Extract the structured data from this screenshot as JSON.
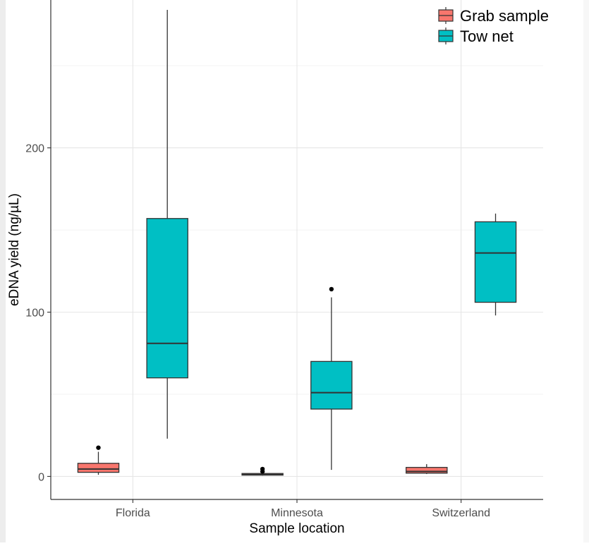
{
  "chart_data": {
    "type": "boxplot",
    "xlabel": "Sample location",
    "ylabel": "eDNA yield (ng/µL)",
    "ylim": [
      -14,
      290
    ],
    "yticks": [
      0,
      100,
      200
    ],
    "categories": [
      "Florida",
      "Minnesota",
      "Switzerland"
    ],
    "legend_position": "top-right",
    "grid": true,
    "series": [
      {
        "name": "Grab sample",
        "color": "#f8766d",
        "boxes": [
          {
            "category": "Florida",
            "whisker_low": 1,
            "q1": 2.5,
            "median": 4.5,
            "q3": 8,
            "whisker_high": 15,
            "outliers": [
              17.5
            ]
          },
          {
            "category": "Minnesota",
            "whisker_low": 0.5,
            "q1": 0.8,
            "median": 1.2,
            "q3": 1.8,
            "whisker_high": 2.5,
            "outliers": [
              3,
              4.5
            ]
          },
          {
            "category": "Switzerland",
            "whisker_low": 1.5,
            "q1": 2,
            "median": 3,
            "q3": 5.5,
            "whisker_high": 7.5,
            "outliers": []
          }
        ]
      },
      {
        "name": "Tow net",
        "color": "#00bfc4",
        "boxes": [
          {
            "category": "Florida",
            "whisker_low": 23,
            "q1": 60,
            "median": 81,
            "q3": 157,
            "whisker_high": 284,
            "outliers": []
          },
          {
            "category": "Minnesota",
            "whisker_low": 4,
            "q1": 41,
            "median": 51,
            "q3": 70,
            "whisker_high": 109,
            "outliers": [
              114
            ]
          },
          {
            "category": "Switzerland",
            "whisker_low": 98,
            "q1": 106,
            "median": 136,
            "q3": 155,
            "whisker_high": 160,
            "outliers": []
          }
        ]
      }
    ]
  }
}
